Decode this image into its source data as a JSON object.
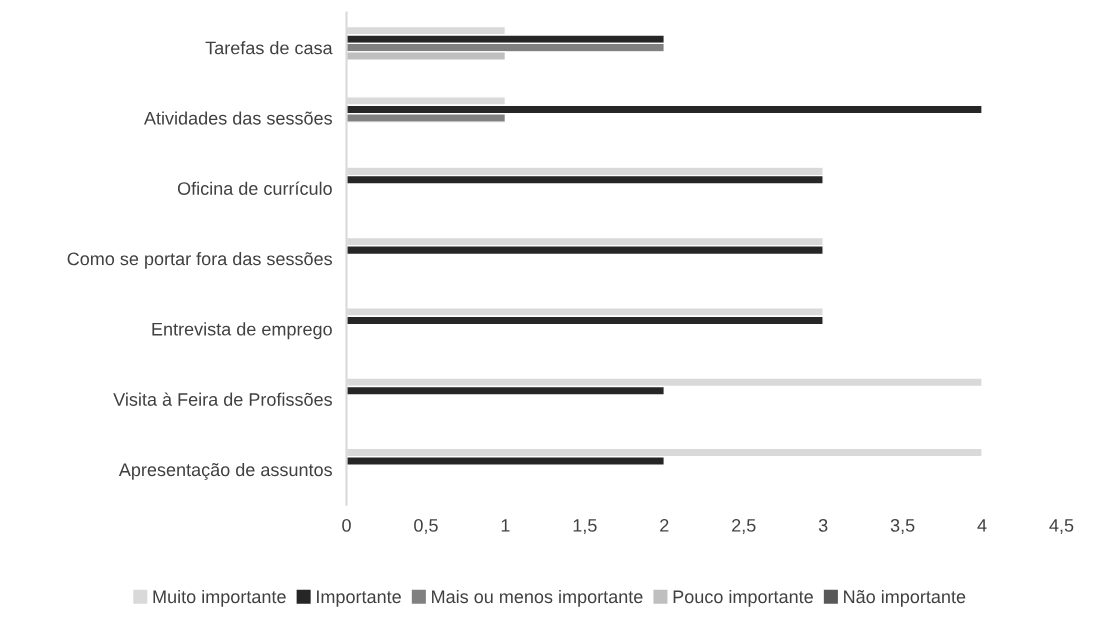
{
  "chart_data": {
    "type": "bar",
    "orientation": "horizontal",
    "categories": [
      "Tarefas de casa",
      "Atividades das sessões",
      "Oficina de currículo",
      "Como se portar fora das sessões",
      "Entrevista de emprego",
      "Visita à Feira de Profissões",
      "Apresentação de assuntos"
    ],
    "series": [
      {
        "name": "Muito importante",
        "color": "#d9d9d9",
        "values": [
          1,
          1,
          3,
          3,
          3,
          4,
          4
        ]
      },
      {
        "name": "Importante",
        "color": "#262626",
        "values": [
          2,
          4,
          3,
          3,
          3,
          2,
          2
        ]
      },
      {
        "name": "Mais ou menos importante",
        "color": "#808080",
        "values": [
          2,
          1,
          null,
          null,
          null,
          null,
          null
        ]
      },
      {
        "name": "Pouco importante",
        "color": "#bfbfbf",
        "values": [
          1,
          null,
          null,
          null,
          null,
          null,
          null
        ]
      },
      {
        "name": "Não importante",
        "color": "#595959",
        "values": [
          null,
          null,
          null,
          null,
          null,
          null,
          null
        ]
      }
    ],
    "xlim": [
      0,
      4.5
    ],
    "xticks": [
      0,
      {
        "value": 0.5,
        "label": "0,5"
      },
      1,
      {
        "value": 1.5,
        "label": "1,5"
      },
      2,
      {
        "value": 2.5,
        "label": "2,5"
      },
      3,
      {
        "value": 3.5,
        "label": "3,5"
      },
      4,
      {
        "value": 4.5,
        "label": "4,5"
      }
    ],
    "grid": false,
    "legend": "bottom"
  }
}
